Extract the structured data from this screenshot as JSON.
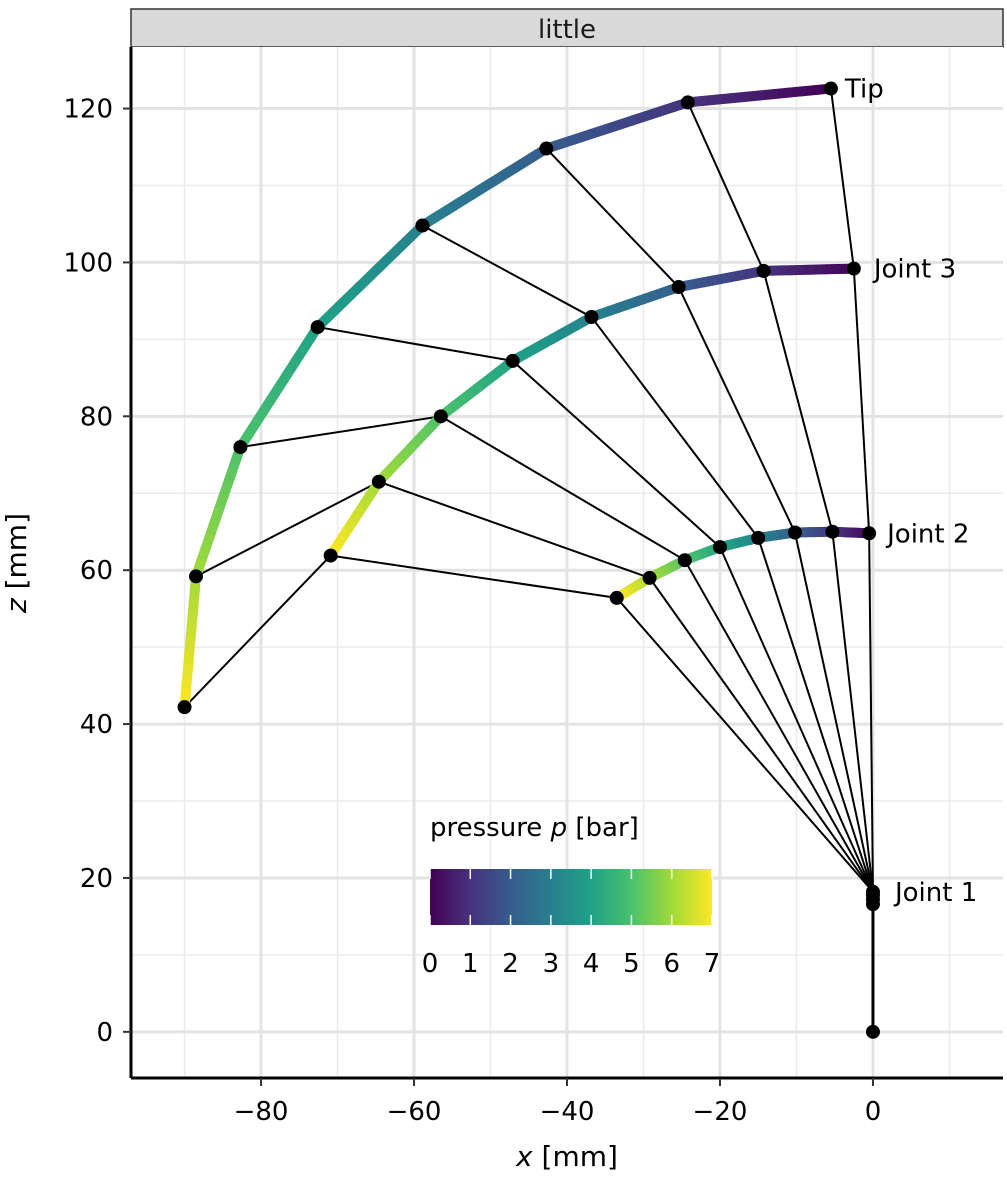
{
  "chart_data": {
    "type": "line",
    "facet": "little",
    "xlabel": {
      "var": "x",
      "unit": " [mm]"
    },
    "ylabel": {
      "var": "z",
      "unit": " [mm]"
    },
    "xlim": [
      -97,
      17
    ],
    "ylim": [
      -6,
      128
    ],
    "x_ticks": [
      -80,
      -60,
      -40,
      -20,
      0
    ],
    "y_ticks": [
      0,
      20,
      40,
      60,
      80,
      100,
      120
    ],
    "x_tick_labels": [
      "−80",
      "−60",
      "−40",
      "−20",
      "0"
    ],
    "y_tick_labels": [
      "0",
      "20",
      "40",
      "60",
      "80",
      "100",
      "120"
    ],
    "grid": true,
    "colorbar": {
      "title_prefix": "pressure ",
      "title_var": "p",
      "title_suffix": " [bar]",
      "range": [
        0,
        7
      ],
      "ticks": [
        "0",
        "1",
        "2",
        "3",
        "4",
        "5",
        "6",
        "7"
      ],
      "colors": [
        "#440154",
        "#46327e",
        "#365c8d",
        "#277f8e",
        "#1fa187",
        "#4ac16d",
        "#a0da39",
        "#fde725"
      ],
      "placement": "bottom-center"
    },
    "joint1_track": [
      [
        0,
        0
      ],
      [
        0,
        16.6
      ],
      [
        0,
        17.2
      ],
      [
        0,
        17.8
      ],
      [
        0,
        18.2
      ]
    ],
    "joint1": [
      0,
      18.2
    ],
    "joint2": [
      {
        "p": 0,
        "x": -0.5,
        "z": 64.8
      },
      {
        "p": 1,
        "x": -5.3,
        "z": 65.0
      },
      {
        "p": 2,
        "x": -10.2,
        "z": 64.9
      },
      {
        "p": 3,
        "x": -15.0,
        "z": 64.2
      },
      {
        "p": 4,
        "x": -20.0,
        "z": 63.0
      },
      {
        "p": 5,
        "x": -24.6,
        "z": 61.3
      },
      {
        "p": 6,
        "x": -29.2,
        "z": 59.0
      },
      {
        "p": 7,
        "x": -33.5,
        "z": 56.4
      }
    ],
    "joint3": [
      {
        "p": 0,
        "x": -2.5,
        "z": 99.2
      },
      {
        "p": 1,
        "x": -14.3,
        "z": 98.9
      },
      {
        "p": 2,
        "x": -25.4,
        "z": 96.8
      },
      {
        "p": 3,
        "x": -36.8,
        "z": 92.9
      },
      {
        "p": 4,
        "x": -47.1,
        "z": 87.2
      },
      {
        "p": 5,
        "x": -56.5,
        "z": 80.0
      },
      {
        "p": 6,
        "x": -64.6,
        "z": 71.5
      },
      {
        "p": 7,
        "x": -70.9,
        "z": 61.9
      }
    ],
    "tip": [
      {
        "p": 0,
        "x": -5.5,
        "z": 122.6
      },
      {
        "p": 1,
        "x": -24.2,
        "z": 120.8
      },
      {
        "p": 2,
        "x": -42.7,
        "z": 114.8
      },
      {
        "p": 3,
        "x": -58.9,
        "z": 104.8
      },
      {
        "p": 4,
        "x": -72.6,
        "z": 91.6
      },
      {
        "p": 5,
        "x": -82.7,
        "z": 76.0
      },
      {
        "p": 6,
        "x": -88.5,
        "z": 59.2
      },
      {
        "p": 7,
        "x": -90.0,
        "z": 42.2
      }
    ],
    "annotations": [
      {
        "text": "Tip",
        "x": -5.5,
        "z": 122.6
      },
      {
        "text": "Joint 3",
        "x": -2.5,
        "z": 99.2
      },
      {
        "text": "Joint 2",
        "x": -0.5,
        "z": 64.8
      },
      {
        "text": "Joint 1",
        "x": 0,
        "z": 18.2
      }
    ]
  }
}
